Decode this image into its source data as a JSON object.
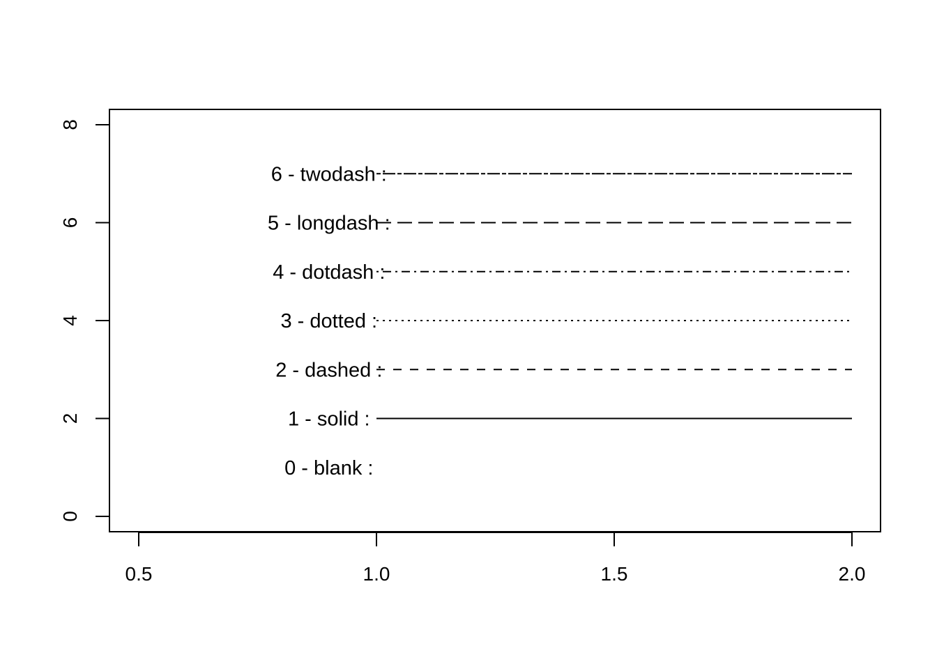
{
  "chart_data": {
    "type": "line",
    "title": "",
    "xlabel": "",
    "ylabel": "",
    "xlim": [
      0.5,
      2.0
    ],
    "ylim": [
      0,
      8
    ],
    "x_ticks": [
      "0.5",
      "1.0",
      "1.5",
      "2.0"
    ],
    "y_ticks": [
      "0",
      "2",
      "4",
      "6",
      "8"
    ],
    "grid": false,
    "legend": "none",
    "color": "#000000",
    "series": [
      {
        "label": "0 - blank :",
        "linetype": "blank",
        "label_x": 0.9,
        "x": [
          1.0,
          2.0
        ],
        "y": [
          1,
          1
        ]
      },
      {
        "label": "1 - solid :",
        "linetype": "solid",
        "label_x": 0.9,
        "x": [
          1.0,
          2.0
        ],
        "y": [
          2,
          2
        ]
      },
      {
        "label": "2 - dashed :",
        "linetype": "dashed",
        "label_x": 0.9,
        "x": [
          1.0,
          2.0
        ],
        "y": [
          3,
          3
        ]
      },
      {
        "label": "3 - dotted :",
        "linetype": "dotted",
        "label_x": 0.9,
        "x": [
          1.0,
          2.0
        ],
        "y": [
          4,
          4
        ]
      },
      {
        "label": "4 - dotdash :",
        "linetype": "dotdash",
        "label_x": 0.9,
        "x": [
          1.0,
          2.0
        ],
        "y": [
          5,
          5
        ]
      },
      {
        "label": "5 - longdash :",
        "linetype": "longdash",
        "label_x": 0.9,
        "x": [
          1.0,
          2.0
        ],
        "y": [
          6,
          6
        ]
      },
      {
        "label": "6 - twodash :",
        "linetype": "twodash",
        "label_x": 0.9,
        "x": [
          1.0,
          2.0
        ],
        "y": [
          7,
          7
        ]
      }
    ]
  }
}
